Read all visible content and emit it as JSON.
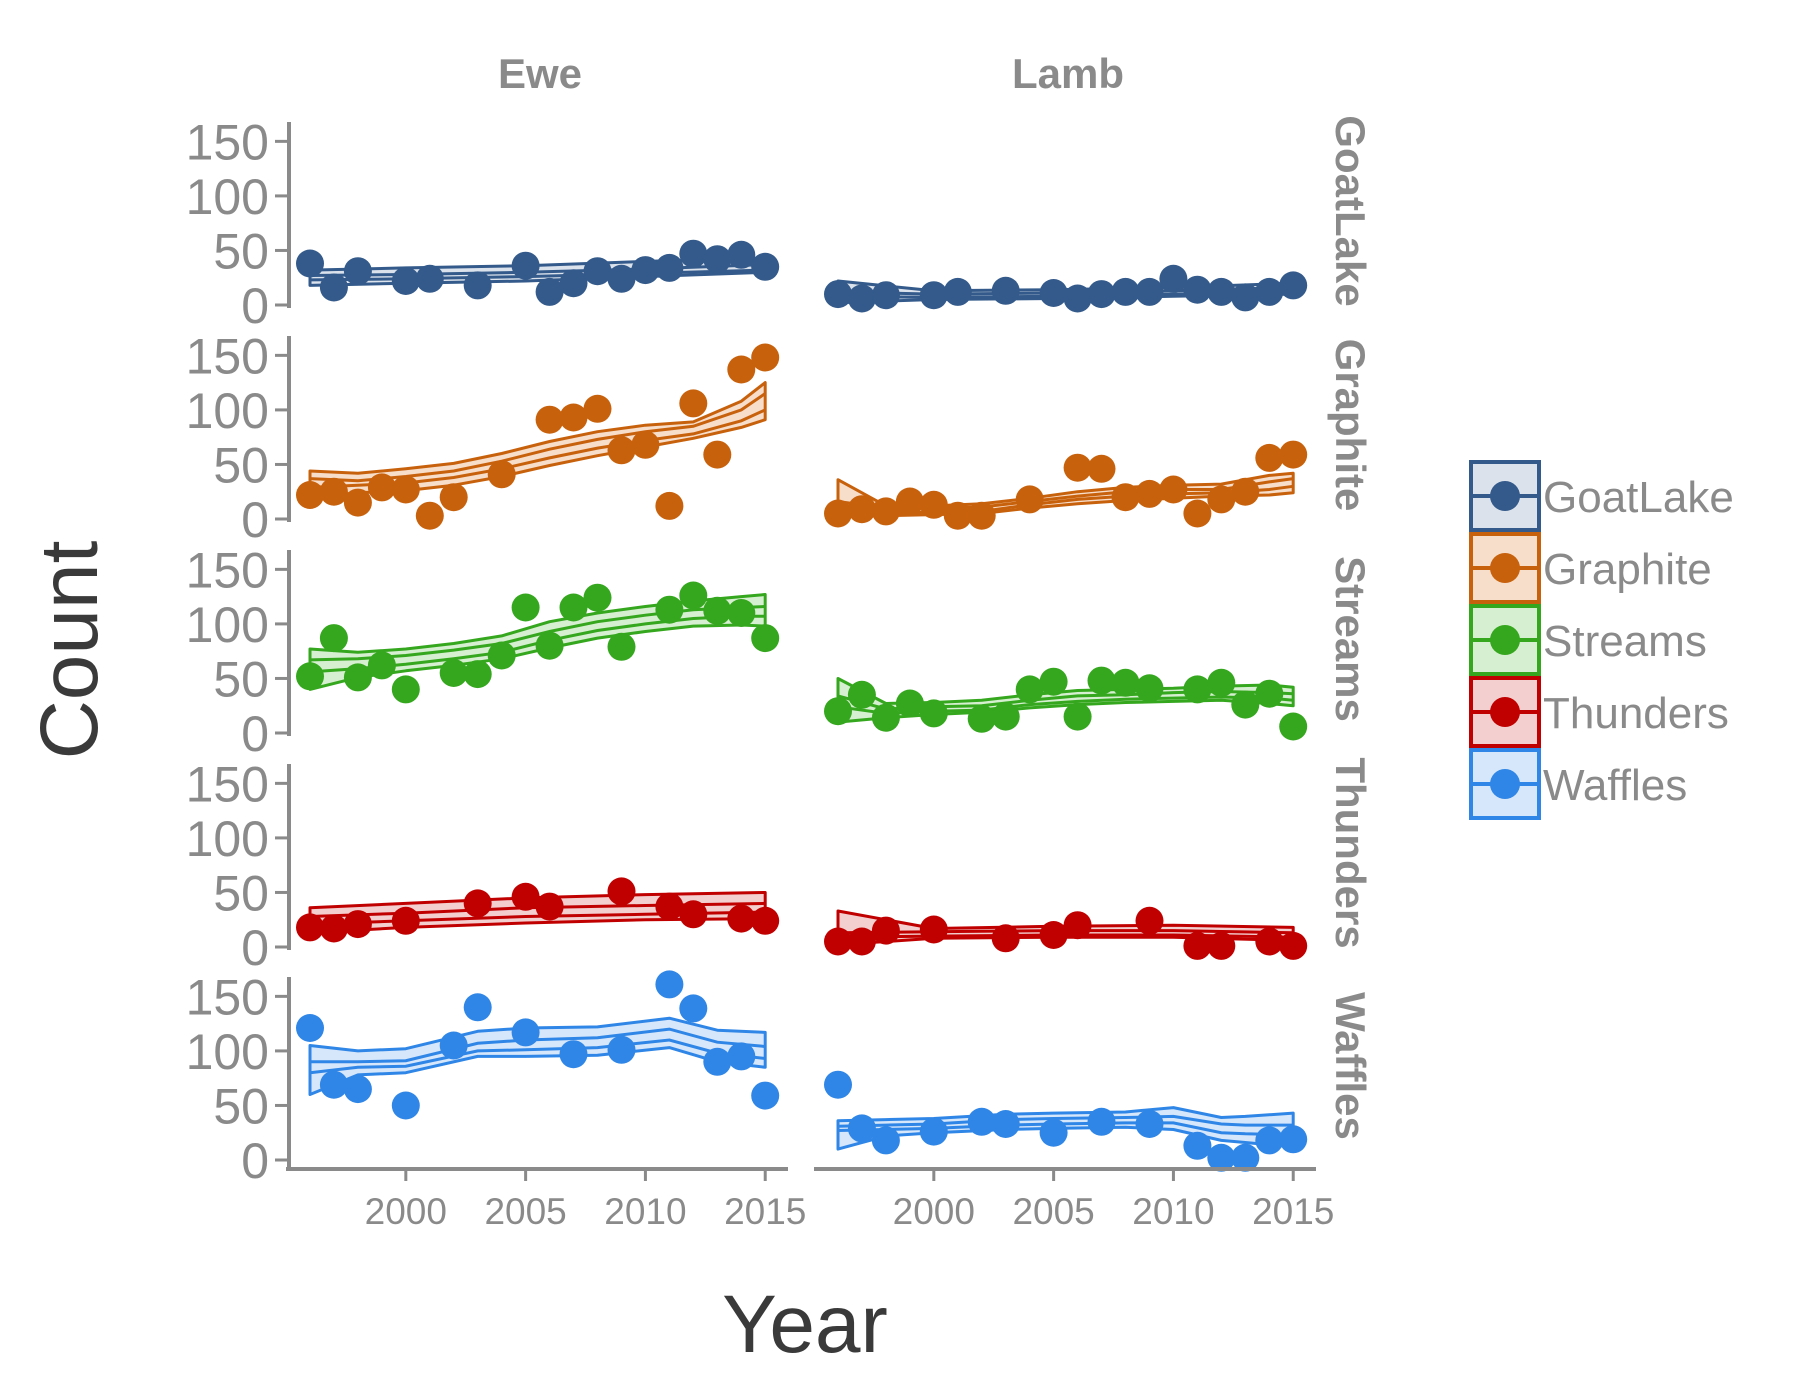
{
  "chart_data": {
    "type": "scatter",
    "title": "",
    "xlabel": "Year",
    "ylabel": "Count",
    "xlim": [
      1995.5,
      2015.7
    ],
    "ylim": [
      0,
      165
    ],
    "yticks": [
      0,
      50,
      100,
      150
    ],
    "xticks": [
      2000,
      2005,
      2010,
      2015
    ],
    "grid": false,
    "legend_position": "right",
    "columns": [
      "Ewe",
      "Lamb"
    ],
    "rows": [
      "GoatLake",
      "Graphite",
      "Streams",
      "Thunders",
      "Waffles"
    ],
    "colors": {
      "GoatLake": "#335a8a",
      "Graphite": "#c8610c",
      "Streams": "#35a71e",
      "Thunders": "#c00000",
      "Waffles": "#2f86e6"
    },
    "fill_colors": {
      "GoatLake": "#dbe2ec",
      "Graphite": "#f7decb",
      "Streams": "#d6efd0",
      "Thunders": "#f3cfd0",
      "Waffles": "#d7e7fb"
    },
    "legend": [
      "GoatLake",
      "Graphite",
      "Streams",
      "Thunders",
      "Waffles"
    ],
    "panels": [
      {
        "row": "GoatLake",
        "column": "Ewe",
        "points": [
          [
            1996,
            38
          ],
          [
            1997,
            16
          ],
          [
            1998,
            31
          ],
          [
            2000,
            22
          ],
          [
            2001,
            24
          ],
          [
            2003,
            18
          ],
          [
            2005,
            36
          ],
          [
            2006,
            12
          ],
          [
            2007,
            20
          ],
          [
            2008,
            31
          ],
          [
            2009,
            24
          ],
          [
            2010,
            32
          ],
          [
            2011,
            34
          ],
          [
            2012,
            47
          ],
          [
            2013,
            42
          ],
          [
            2014,
            46
          ],
          [
            2015,
            35
          ]
        ],
        "band": {
          "x": [
            1996,
            2000,
            2005,
            2010,
            2015
          ],
          "upper": [
            32,
            34,
            36,
            40,
            43
          ],
          "lower": [
            18,
            20,
            22,
            26,
            30
          ],
          "fit_upper": [
            27,
            28,
            30,
            33,
            37
          ],
          "fit_lower": [
            23,
            24,
            26,
            29,
            32
          ]
        }
      },
      {
        "row": "GoatLake",
        "column": "Lamb",
        "points": [
          [
            1996,
            10
          ],
          [
            1997,
            6
          ],
          [
            1998,
            9
          ],
          [
            2000,
            9
          ],
          [
            2001,
            12
          ],
          [
            2003,
            13
          ],
          [
            2005,
            11
          ],
          [
            2006,
            6
          ],
          [
            2007,
            10
          ],
          [
            2008,
            12
          ],
          [
            2009,
            12
          ],
          [
            2010,
            24
          ],
          [
            2011,
            14
          ],
          [
            2012,
            12
          ],
          [
            2013,
            7
          ],
          [
            2014,
            12
          ],
          [
            2015,
            18
          ]
        ],
        "band": {
          "x": [
            1996,
            2000,
            2005,
            2010,
            2015
          ],
          "upper": [
            22,
            13,
            14,
            16,
            20
          ],
          "lower": [
            2,
            5,
            6,
            8,
            10
          ],
          "fit_upper": [
            12,
            10,
            11,
            13,
            16
          ],
          "fit_lower": [
            8,
            7,
            8,
            10,
            13
          ]
        }
      },
      {
        "row": "Graphite",
        "column": "Ewe",
        "points": [
          [
            1996,
            22
          ],
          [
            1997,
            25
          ],
          [
            1998,
            15
          ],
          [
            1999,
            29
          ],
          [
            2000,
            27
          ],
          [
            2001,
            3
          ],
          [
            2002,
            20
          ],
          [
            2004,
            41
          ],
          [
            2006,
            91
          ],
          [
            2007,
            93
          ],
          [
            2008,
            101
          ],
          [
            2009,
            63
          ],
          [
            2010,
            68
          ],
          [
            2011,
            12
          ],
          [
            2012,
            106
          ],
          [
            2013,
            59
          ],
          [
            2014,
            137
          ],
          [
            2015,
            148
          ]
        ],
        "band": {
          "x": [
            1996,
            1998,
            2000,
            2002,
            2004,
            2006,
            2008,
            2010,
            2012,
            2014,
            2015
          ],
          "upper": [
            44,
            42,
            46,
            51,
            60,
            71,
            80,
            86,
            89,
            108,
            125
          ],
          "lower": [
            20,
            24,
            26,
            31,
            39,
            49,
            58,
            66,
            74,
            84,
            91
          ],
          "fit_upper": [
            37,
            35,
            39,
            44,
            53,
            64,
            73,
            80,
            85,
            100,
            115
          ],
          "fit_lower": [
            29,
            31,
            33,
            38,
            46,
            56,
            65,
            72,
            78,
            90,
            100
          ]
        }
      },
      {
        "row": "Graphite",
        "column": "Lamb",
        "points": [
          [
            1996,
            5
          ],
          [
            1997,
            9
          ],
          [
            1998,
            7
          ],
          [
            1999,
            16
          ],
          [
            2000,
            13
          ],
          [
            2001,
            3
          ],
          [
            2002,
            3
          ],
          [
            2004,
            18
          ],
          [
            2006,
            47
          ],
          [
            2007,
            46
          ],
          [
            2008,
            20
          ],
          [
            2009,
            23
          ],
          [
            2010,
            27
          ],
          [
            2011,
            5
          ],
          [
            2012,
            18
          ],
          [
            2013,
            25
          ],
          [
            2014,
            56
          ],
          [
            2015,
            59
          ]
        ],
        "band": {
          "x": [
            1996,
            1998,
            2000,
            2002,
            2004,
            2006,
            2008,
            2010,
            2012,
            2014,
            2015
          ],
          "upper": [
            36,
            12,
            12,
            14,
            19,
            25,
            29,
            31,
            32,
            40,
            42
          ],
          "lower": [
            2,
            3,
            4,
            5,
            10,
            14,
            17,
            19,
            21,
            22,
            24
          ],
          "fit_upper": [
            16,
            10,
            10,
            11,
            16,
            21,
            25,
            27,
            27,
            34,
            37
          ],
          "fit_lower": [
            10,
            6,
            6,
            7,
            13,
            18,
            21,
            23,
            24,
            27,
            30
          ]
        }
      },
      {
        "row": "Streams",
        "column": "Ewe",
        "points": [
          [
            1996,
            52
          ],
          [
            1997,
            87
          ],
          [
            1998,
            51
          ],
          [
            1999,
            62
          ],
          [
            2000,
            40
          ],
          [
            2002,
            55
          ],
          [
            2003,
            54
          ],
          [
            2004,
            71
          ],
          [
            2005,
            115
          ],
          [
            2006,
            80
          ],
          [
            2007,
            115
          ],
          [
            2008,
            124
          ],
          [
            2009,
            79
          ],
          [
            2011,
            113
          ],
          [
            2012,
            126
          ],
          [
            2013,
            112
          ],
          [
            2014,
            110
          ],
          [
            2015,
            87
          ]
        ],
        "band": {
          "x": [
            1996,
            1998,
            2000,
            2002,
            2004,
            2006,
            2008,
            2010,
            2012,
            2014,
            2015
          ],
          "upper": [
            77,
            74,
            77,
            82,
            89,
            102,
            110,
            116,
            121,
            125,
            127
          ],
          "lower": [
            40,
            51,
            57,
            62,
            68,
            78,
            87,
            93,
            98,
            99,
            98
          ],
          "fit_upper": [
            67,
            68,
            71,
            76,
            82,
            93,
            102,
            108,
            113,
            115,
            116
          ],
          "fit_lower": [
            56,
            59,
            63,
            68,
            74,
            85,
            94,
            100,
            105,
            107,
            107
          ]
        }
      },
      {
        "row": "Streams",
        "column": "Lamb",
        "points": [
          [
            1996,
            20
          ],
          [
            1997,
            35
          ],
          [
            1998,
            14
          ],
          [
            1999,
            27
          ],
          [
            2000,
            18
          ],
          [
            2002,
            13
          ],
          [
            2003,
            15
          ],
          [
            2004,
            40
          ],
          [
            2005,
            47
          ],
          [
            2006,
            15
          ],
          [
            2007,
            48
          ],
          [
            2008,
            46
          ],
          [
            2009,
            41
          ],
          [
            2011,
            40
          ],
          [
            2012,
            46
          ],
          [
            2013,
            26
          ],
          [
            2014,
            36
          ],
          [
            2015,
            6
          ]
        ],
        "band": {
          "x": [
            1996,
            1998,
            2000,
            2002,
            2004,
            2006,
            2008,
            2010,
            2012,
            2014,
            2015
          ],
          "upper": [
            50,
            27,
            28,
            30,
            35,
            39,
            40,
            41,
            43,
            44,
            42
          ],
          "lower": [
            10,
            14,
            17,
            19,
            23,
            26,
            28,
            29,
            30,
            27,
            25
          ],
          "fit_upper": [
            34,
            22,
            24,
            25,
            30,
            34,
            35,
            37,
            38,
            37,
            36
          ],
          "fit_lower": [
            24,
            18,
            20,
            21,
            26,
            29,
            31,
            32,
            33,
            32,
            30
          ]
        }
      },
      {
        "row": "Thunders",
        "column": "Ewe",
        "points": [
          [
            1996,
            18
          ],
          [
            1997,
            17
          ],
          [
            1998,
            21
          ],
          [
            2000,
            24
          ],
          [
            2003,
            40
          ],
          [
            2005,
            46
          ],
          [
            2006,
            37
          ],
          [
            2009,
            51
          ],
          [
            2011,
            37
          ],
          [
            2012,
            30
          ],
          [
            2014,
            26
          ],
          [
            2015,
            24
          ]
        ],
        "band": {
          "x": [
            1996,
            2000,
            2005,
            2010,
            2015
          ],
          "upper": [
            36,
            40,
            45,
            48,
            50
          ],
          "lower": [
            13,
            18,
            22,
            25,
            26
          ],
          "fit_upper": [
            28,
            31,
            36,
            38,
            40
          ],
          "fit_lower": [
            21,
            24,
            28,
            30,
            32
          ]
        }
      },
      {
        "row": "Thunders",
        "column": "Lamb",
        "points": [
          [
            1996,
            5
          ],
          [
            1997,
            5
          ],
          [
            1998,
            15
          ],
          [
            2000,
            16
          ],
          [
            2003,
            8
          ],
          [
            2005,
            11
          ],
          [
            2006,
            20
          ],
          [
            2009,
            24
          ],
          [
            2011,
            1
          ],
          [
            2012,
            1
          ],
          [
            2014,
            5
          ],
          [
            2015,
            1
          ]
        ],
        "band": {
          "x": [
            1996,
            2000,
            2005,
            2010,
            2015
          ],
          "upper": [
            33,
            17,
            19,
            20,
            18
          ],
          "lower": [
            2,
            8,
            9,
            9,
            6
          ],
          "fit_upper": [
            13,
            14,
            15,
            15,
            13
          ],
          "fit_lower": [
            9,
            10,
            11,
            11,
            9
          ]
        }
      },
      {
        "row": "Waffles",
        "column": "Ewe",
        "points": [
          [
            1996,
            121
          ],
          [
            1997,
            69
          ],
          [
            1998,
            65
          ],
          [
            2000,
            50
          ],
          [
            2002,
            105
          ],
          [
            2003,
            140
          ],
          [
            2005,
            117
          ],
          [
            2007,
            97
          ],
          [
            2009,
            101
          ],
          [
            2011,
            161
          ],
          [
            2012,
            139
          ],
          [
            2013,
            90
          ],
          [
            2014,
            95
          ],
          [
            2015,
            59
          ]
        ],
        "band": {
          "x": [
            1996,
            1998,
            2000,
            2003,
            2005,
            2008,
            2011,
            2013,
            2015
          ],
          "upper": [
            105,
            100,
            102,
            118,
            121,
            122,
            130,
            119,
            117
          ],
          "lower": [
            60,
            78,
            80,
            95,
            95,
            96,
            103,
            90,
            85
          ],
          "fit_upper": [
            90,
            90,
            91,
            107,
            110,
            112,
            120,
            108,
            104
          ],
          "fit_lower": [
            80,
            85,
            86,
            100,
            101,
            103,
            110,
            98,
            93
          ]
        }
      },
      {
        "row": "Waffles",
        "column": "Lamb",
        "points": [
          [
            1996,
            69
          ],
          [
            1997,
            29
          ],
          [
            1998,
            18
          ],
          [
            2000,
            26
          ],
          [
            2002,
            35
          ],
          [
            2003,
            33
          ],
          [
            2005,
            25
          ],
          [
            2007,
            35
          ],
          [
            2009,
            33
          ],
          [
            2011,
            13
          ],
          [
            2012,
            2
          ],
          [
            2013,
            2
          ],
          [
            2014,
            18
          ],
          [
            2015,
            19
          ]
        ],
        "band": {
          "x": [
            1996,
            1998,
            2000,
            2003,
            2005,
            2008,
            2010,
            2012,
            2013,
            2015
          ],
          "upper": [
            36,
            37,
            38,
            42,
            43,
            44,
            48,
            39,
            40,
            43
          ],
          "lower": [
            10,
            22,
            25,
            28,
            29,
            30,
            28,
            18,
            16,
            12
          ],
          "fit_upper": [
            31,
            32,
            33,
            37,
            38,
            39,
            40,
            33,
            32,
            32
          ],
          "fit_lower": [
            27,
            28,
            29,
            32,
            33,
            34,
            34,
            25,
            24,
            23
          ]
        }
      }
    ]
  }
}
